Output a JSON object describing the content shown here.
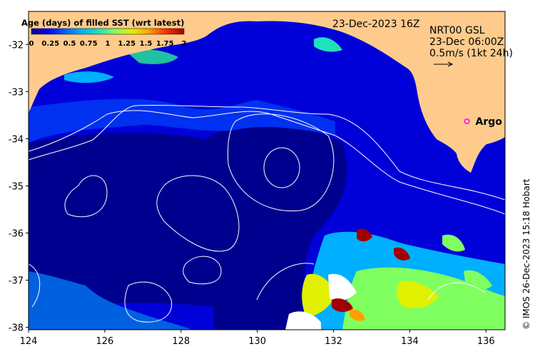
{
  "map": {
    "date_label": "23-Dec-2023 16Z",
    "colorbar": {
      "title": "Age (days) of filled SST (wrt latest)",
      "ticks": [
        "0",
        "0.25",
        "0.5",
        "0.75",
        "1",
        "1.25",
        "1.5",
        "1.75",
        "2"
      ],
      "min": 0,
      "max": 2,
      "colors": [
        "#00008f",
        "#0000ff",
        "#0060ff",
        "#00b0ff",
        "#20e0c0",
        "#80ff60",
        "#e0f000",
        "#ffa000",
        "#ff3000",
        "#a00000"
      ]
    },
    "info": {
      "line1": "NRT00 GSL",
      "line2": "23-Dec 06:00Z",
      "line3": "0.5m/s (1kt 24h)"
    },
    "argo": {
      "label": "Argo",
      "lon": 135.5,
      "lat": -33.63,
      "color": "#ff00ff"
    },
    "credit": "© IMOS 26-Dec-2023 15:18 Hobart",
    "x_axis": {
      "ticks": [
        "124",
        "126",
        "128",
        "130",
        "132",
        "134",
        "136"
      ],
      "lim": [
        124,
        136.5
      ]
    },
    "y_axis": {
      "ticks": [
        "-32",
        "-33",
        "-34",
        "-35",
        "-36",
        "-37",
        "-38"
      ],
      "lim": [
        -38.05,
        -31.3
      ]
    },
    "colors": {
      "land": "#fecb8c",
      "ocean_deep": "#00008f",
      "ocean_mid": "#0000d8",
      "ocean_light": "#0060e0",
      "contour": "#ffffff"
    }
  }
}
